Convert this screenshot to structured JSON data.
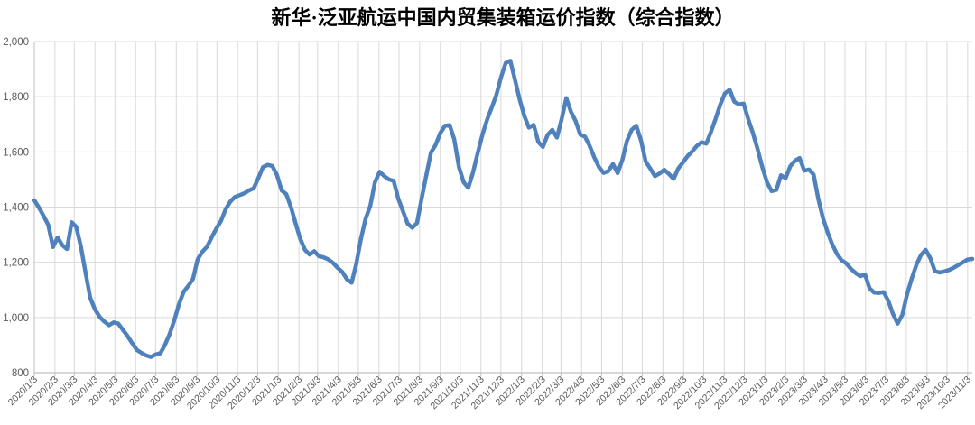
{
  "title": "新华·泛亚航运中国内贸集装箱运价指数（综合指数）",
  "colors": {
    "line": "#4f81bd",
    "grid": "#d9d9d9",
    "axis": "#bfbfbf",
    "tick_label": "#595959",
    "title": "#000000",
    "background": "#ffffff"
  },
  "chart_data": {
    "type": "line",
    "title": "新华·泛亚航运中国内贸集装箱运价指数（综合指数）",
    "xlabel": "",
    "ylabel": "",
    "ylim": [
      800,
      2000
    ],
    "y_ticks": [
      800,
      1000,
      1200,
      1400,
      1600,
      1800,
      2000
    ],
    "grid": true,
    "legend_position": "none",
    "x_start": "2020/1/3",
    "x_interval_days": 7,
    "x_tick_labels": [
      "2020/1/3",
      "2020/2/3",
      "2020/3/3",
      "2020/4/3",
      "2020/5/3",
      "2020/6/3",
      "2020/7/3",
      "2020/8/3",
      "2020/9/3",
      "2020/10/3",
      "2020/11/3",
      "2020/12/3",
      "2021/1/3",
      "2021/2/3",
      "2021/3/3",
      "2021/4/3",
      "2021/5/3",
      "2021/6/3",
      "2021/7/3",
      "2021/8/3",
      "2021/9/3",
      "2021/10/3",
      "2021/11/3",
      "2021/12/3",
      "2022/1/3",
      "2022/2/3",
      "2022/3/3",
      "2022/4/3",
      "2022/5/3",
      "2022/6/3",
      "2022/7/3",
      "2022/8/3",
      "2022/9/3",
      "2022/10/3",
      "2022/11/3",
      "2022/12/3",
      "2023/1/3",
      "2023/2/3",
      "2023/3/3",
      "2023/4/3",
      "2023/5/3",
      "2023/6/3",
      "2023/7/3",
      "2023/8/3",
      "2023/9/3",
      "2023/10/3",
      "2023/11/3"
    ],
    "series": [
      {
        "name": "综合指数",
        "values": [
          1425,
          1398,
          1368,
          1335,
          1255,
          1290,
          1262,
          1248,
          1345,
          1328,
          1255,
          1160,
          1070,
          1030,
          1002,
          985,
          972,
          982,
          978,
          955,
          932,
          906,
          882,
          871,
          862,
          857,
          866,
          870,
          900,
          940,
          990,
          1048,
          1093,
          1115,
          1140,
          1210,
          1238,
          1256,
          1290,
          1322,
          1350,
          1392,
          1420,
          1437,
          1443,
          1450,
          1460,
          1468,
          1505,
          1545,
          1553,
          1549,
          1516,
          1460,
          1447,
          1400,
          1340,
          1285,
          1245,
          1228,
          1240,
          1222,
          1218,
          1210,
          1198,
          1180,
          1165,
          1138,
          1126,
          1195,
          1285,
          1358,
          1405,
          1490,
          1528,
          1512,
          1500,
          1495,
          1430,
          1385,
          1340,
          1325,
          1342,
          1430,
          1515,
          1598,
          1625,
          1668,
          1695,
          1697,
          1645,
          1545,
          1490,
          1470,
          1525,
          1595,
          1660,
          1715,
          1760,
          1805,
          1870,
          1922,
          1930,
          1862,
          1790,
          1730,
          1688,
          1698,
          1636,
          1618,
          1662,
          1680,
          1652,
          1718,
          1795,
          1745,
          1712,
          1663,
          1655,
          1622,
          1580,
          1545,
          1524,
          1530,
          1556,
          1523,
          1570,
          1640,
          1680,
          1695,
          1642,
          1565,
          1540,
          1512,
          1522,
          1535,
          1520,
          1502,
          1540,
          1562,
          1585,
          1602,
          1622,
          1635,
          1630,
          1672,
          1720,
          1772,
          1812,
          1825,
          1782,
          1772,
          1775,
          1718,
          1668,
          1610,
          1545,
          1490,
          1458,
          1462,
          1515,
          1505,
          1548,
          1568,
          1578,
          1532,
          1536,
          1518,
          1430,
          1360,
          1308,
          1265,
          1230,
          1207,
          1196,
          1176,
          1161,
          1150,
          1156,
          1105,
          1090,
          1089,
          1092,
          1060,
          1013,
          978,
          1010,
          1082,
          1140,
          1190,
          1226,
          1245,
          1215,
          1168,
          1163,
          1167,
          1172,
          1180,
          1190,
          1200,
          1210,
          1212
        ]
      }
    ]
  }
}
